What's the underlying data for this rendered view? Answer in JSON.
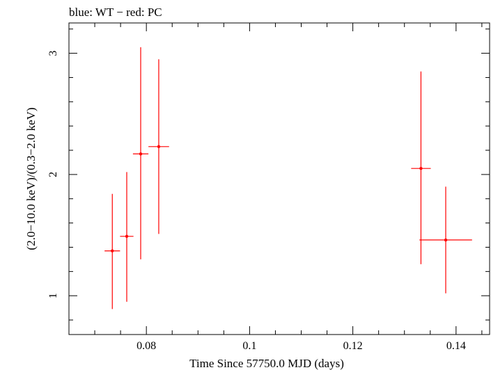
{
  "chart_data": {
    "type": "scatter",
    "title": "blue: WT − red: PC",
    "xlabel": "Time Since 57750.0 MJD (days)",
    "ylabel": "(2.0−10.0 keV)/(0.3−2.0 keV)",
    "xlim": [
      0.065,
      0.1465
    ],
    "ylim": [
      0.68,
      3.25
    ],
    "x_ticks": [
      0.08,
      0.1,
      0.12,
      0.14
    ],
    "x_tick_labels": [
      "0.08",
      "0.1",
      "0.12",
      "0.14"
    ],
    "y_ticks": [
      1,
      2,
      3
    ],
    "y_tick_labels": [
      "1",
      "2",
      "3"
    ],
    "series": [
      {
        "name": "PC",
        "color": "#ff0000",
        "points": [
          {
            "x": 0.0734,
            "xerr": 0.0015,
            "y": 1.37,
            "ylo": 0.89,
            "yhi": 1.84
          },
          {
            "x": 0.0762,
            "xerr": 0.0013,
            "y": 1.49,
            "ylo": 0.95,
            "yhi": 2.02
          },
          {
            "x": 0.0789,
            "xerr": 0.0015,
            "y": 2.17,
            "ylo": 1.3,
            "yhi": 3.05
          },
          {
            "x": 0.0824,
            "xerr": 0.002,
            "y": 2.23,
            "ylo": 1.51,
            "yhi": 2.95
          },
          {
            "x": 0.1332,
            "xerr": 0.0019,
            "y": 2.05,
            "ylo": 1.26,
            "yhi": 2.85
          },
          {
            "x": 0.138,
            "xerr": 0.0051,
            "y": 1.46,
            "ylo": 1.02,
            "yhi": 1.9
          }
        ]
      },
      {
        "name": "WT",
        "color": "#0000ff",
        "points": []
      }
    ]
  }
}
